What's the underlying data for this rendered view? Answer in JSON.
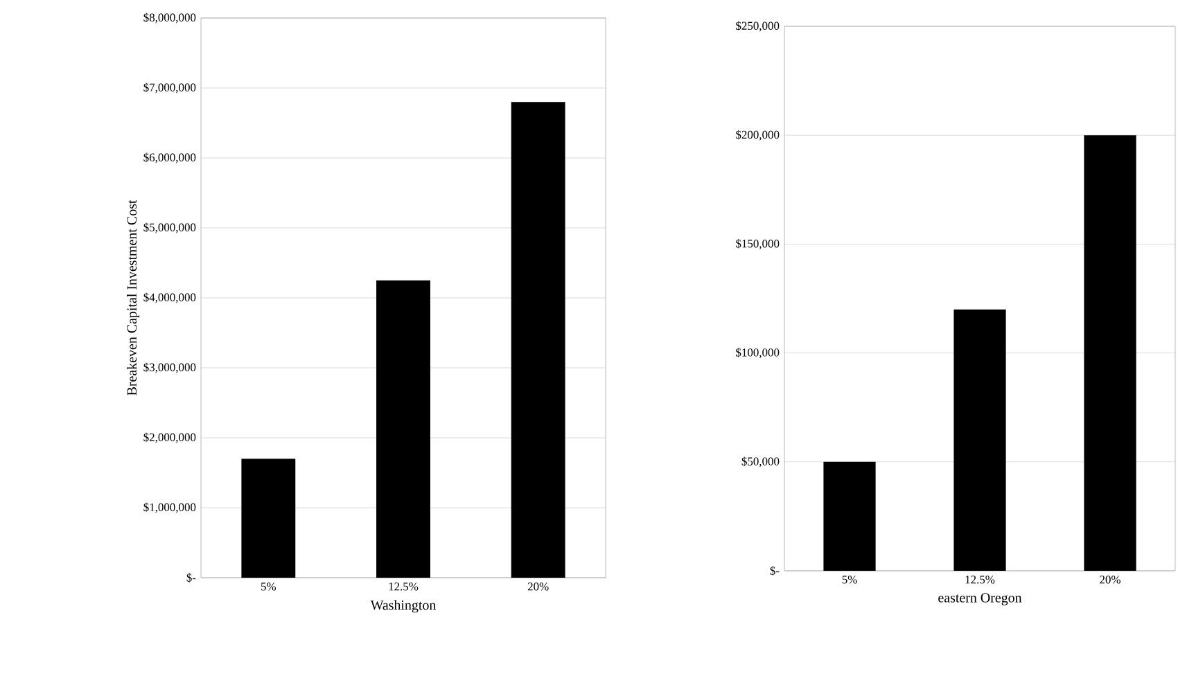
{
  "chart_data": [
    {
      "type": "bar",
      "xlabel": "Washington",
      "ylabel": "Breakeven Capital Investment Cost",
      "categories": [
        "5%",
        "12.5%",
        "20%"
      ],
      "values": [
        1700000,
        4250000,
        6800000
      ],
      "color": "#000000",
      "ylim": [
        0,
        8000000
      ],
      "yticks": [
        {
          "value": 0,
          "label": "$-"
        },
        {
          "value": 1000000,
          "label": "$1,000,000"
        },
        {
          "value": 2000000,
          "label": "$2,000,000"
        },
        {
          "value": 3000000,
          "label": "$3,000,000"
        },
        {
          "value": 4000000,
          "label": "$4,000,000"
        },
        {
          "value": 5000000,
          "label": "$5,000,000"
        },
        {
          "value": 6000000,
          "label": "$6,000,000"
        },
        {
          "value": 7000000,
          "label": "$7,000,000"
        },
        {
          "value": 8000000,
          "label": "$8,000,000"
        }
      ],
      "grid": "y"
    },
    {
      "type": "bar",
      "xlabel": "eastern Oregon",
      "categories": [
        "5%",
        "12.5%",
        "20%"
      ],
      "values": [
        50000,
        120000,
        200000
      ],
      "color": "#000000",
      "ylim": [
        0,
        250000
      ],
      "yticks": [
        {
          "value": 0,
          "label": "$-"
        },
        {
          "value": 50000,
          "label": "$50,000"
        },
        {
          "value": 100000,
          "label": "$100,000"
        },
        {
          "value": 150000,
          "label": "$150,000"
        },
        {
          "value": 200000,
          "label": "$200,000"
        },
        {
          "value": 250000,
          "label": "$250,000"
        }
      ],
      "grid": "y"
    }
  ]
}
